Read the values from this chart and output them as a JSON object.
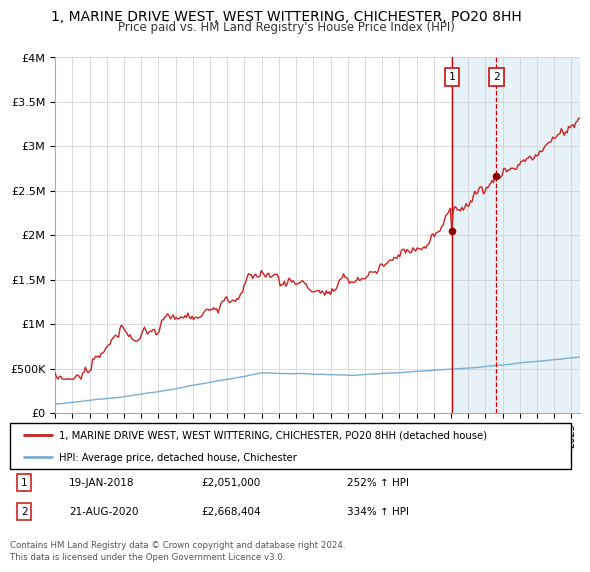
{
  "title": "1, MARINE DRIVE WEST, WEST WITTERING, CHICHESTER, PO20 8HH",
  "subtitle": "Price paid vs. HM Land Registry's House Price Index (HPI)",
  "title_fontsize": 10,
  "subtitle_fontsize": 8.5,
  "hpi_color": "#7aadd4",
  "price_color": "#cc2222",
  "vline1_color": "#cc0000",
  "vline2_color": "#cc0000",
  "shade_color": "#d8e8f4",
  "marker1_date": "19-JAN-2018",
  "marker1_price": 2051000,
  "marker1_pct": "252%",
  "marker2_date": "21-AUG-2020",
  "marker2_price": 2668404,
  "marker2_pct": "334%",
  "legend_label_price": "1, MARINE DRIVE WEST, WEST WITTERING, CHICHESTER, PO20 8HH (detached house)",
  "legend_label_hpi": "HPI: Average price, detached house, Chichester",
  "footer": "Contains HM Land Registry data © Crown copyright and database right 2024.\nThis data is licensed under the Open Government Licence v3.0.",
  "ylim": [
    0,
    4000000
  ],
  "yticks": [
    0,
    500000,
    1000000,
    1500000,
    2000000,
    2500000,
    3000000,
    3500000,
    4000000
  ],
  "ytick_labels": [
    "£0",
    "£500K",
    "£1M",
    "£1.5M",
    "£2M",
    "£2.5M",
    "£3M",
    "£3.5M",
    "£4M"
  ],
  "xstart_year": 1995,
  "xend_year": 2025
}
